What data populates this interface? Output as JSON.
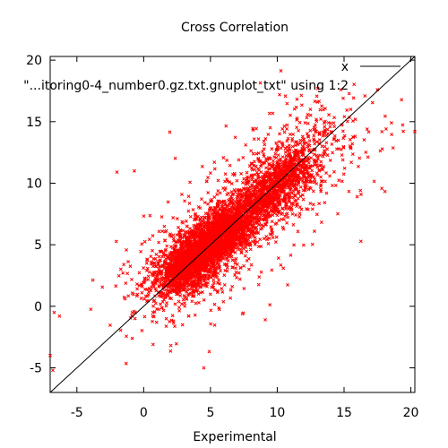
{
  "chart_data": {
    "type": "scatter",
    "title": "Cross Correlation",
    "xlabel": "Experimental",
    "ylabel": "",
    "xlim": [
      -7,
      20.3
    ],
    "ylim": [
      -7,
      20.3
    ],
    "x_ticks": [
      -5,
      0,
      5,
      10,
      15,
      20
    ],
    "y_ticks": [
      -5,
      0,
      5,
      10,
      15,
      20
    ],
    "grid": false,
    "legend_position": "top-right",
    "legend": [
      {
        "label": "x",
        "kind": "line"
      },
      {
        "label": "\"...itoring0-4_number0.gz.txt.gnuplot_txt\" using 1:2",
        "kind": "points"
      }
    ],
    "reference_line": {
      "from": [
        -7,
        -7
      ],
      "to": [
        20.3,
        20.3
      ]
    },
    "point_color": "#ff0000",
    "series": [
      {
        "marker": "x",
        "correlation_approx": 0.85,
        "center": [
          5.5,
          5.5
        ],
        "notable_outliers": [
          [
            -7,
            -4
          ],
          [
            -6.8,
            -5.2
          ],
          [
            -6.7,
            -0.5
          ],
          [
            -6.3,
            -0.8
          ],
          [
            -2.0,
            10.9
          ],
          [
            -0.7,
            11.0
          ],
          [
            0.7,
            -3.1
          ],
          [
            4.5,
            -5.0
          ],
          [
            9.1,
            -1.1
          ],
          [
            17.5,
            17.6
          ],
          [
            20.3,
            14.2
          ],
          [
            15.5,
            16.0
          ]
        ]
      }
    ]
  }
}
